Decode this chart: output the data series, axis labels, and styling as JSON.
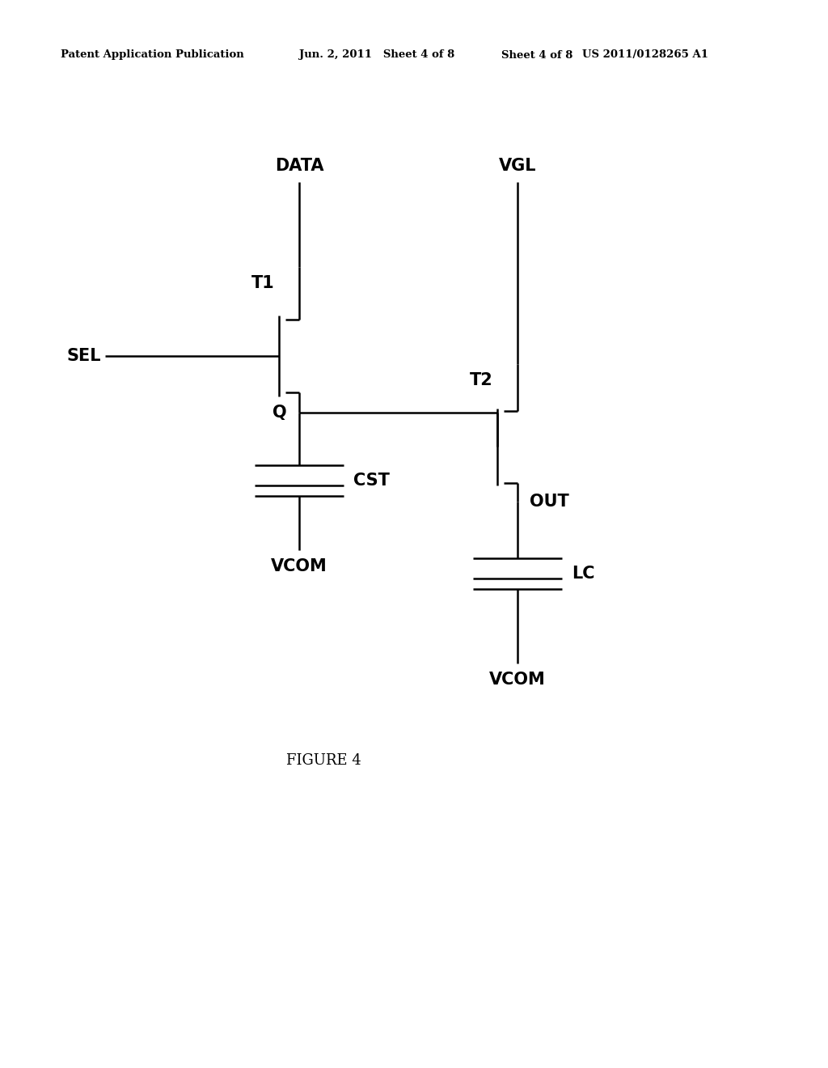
{
  "header_left": "Patent Application Publication",
  "header_center": "Jun. 2, 2011   Sheet 4 of 8",
  "header_right": "US 2011/0128265 A1",
  "figure_label": "FIGURE 4",
  "background": "#ffffff",
  "line_color": "#000000",
  "lw": 1.8
}
